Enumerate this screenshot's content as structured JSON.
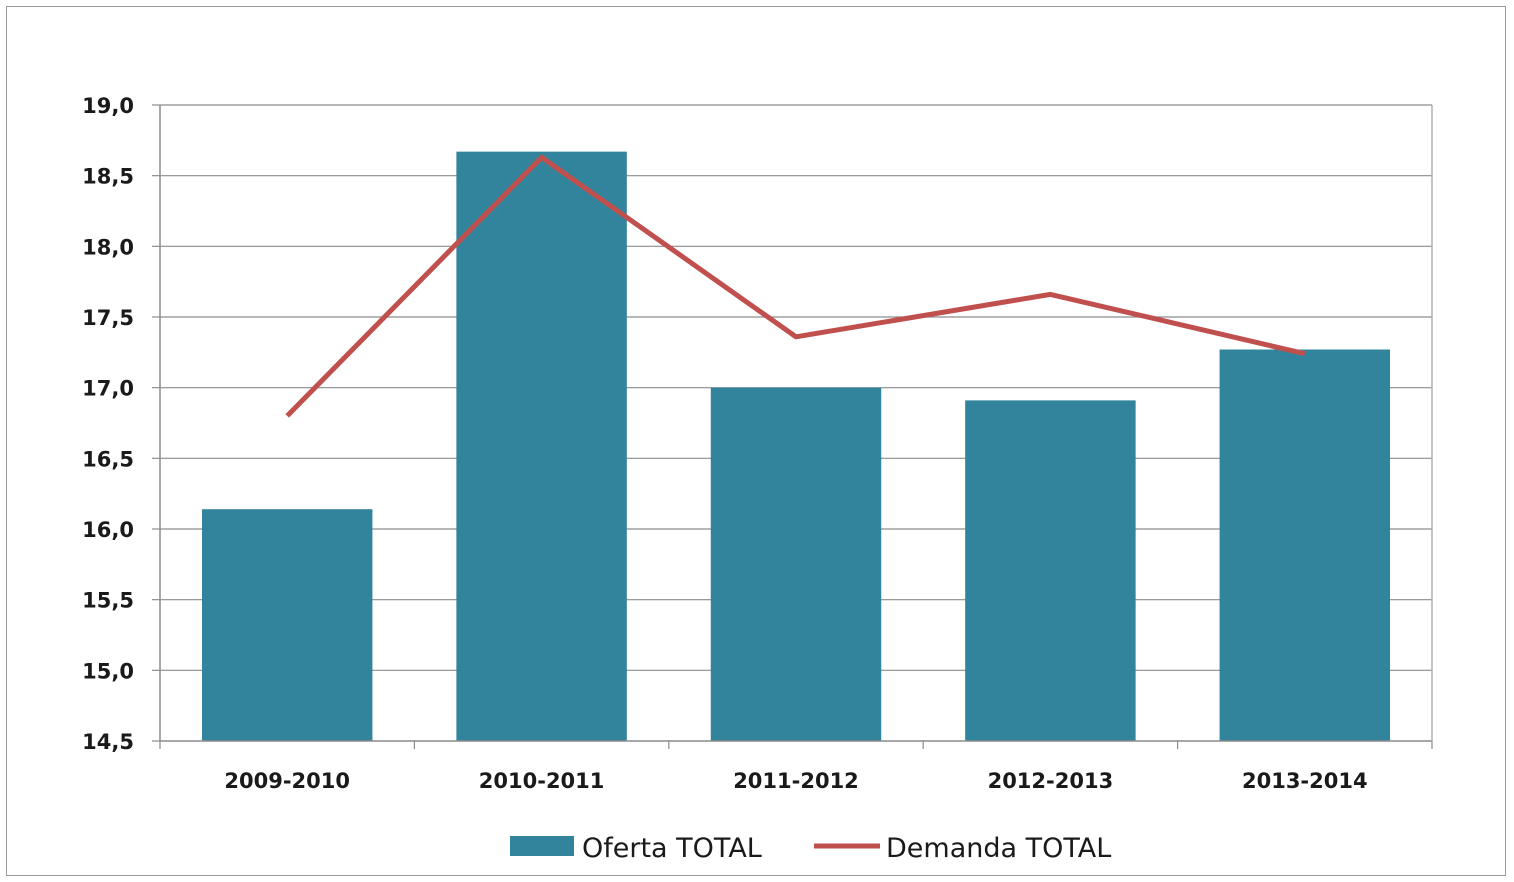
{
  "chart_data": {
    "type": "bar",
    "categories": [
      "2009-2010",
      "2010-2011",
      "2011-2012",
      "2012-2013",
      "2013-2014"
    ],
    "series": [
      {
        "name": "Oferta TOTAL",
        "type": "bar",
        "color": "#31849b",
        "values": [
          16.14,
          18.67,
          17.0,
          16.91,
          17.27
        ]
      },
      {
        "name": "Demanda TOTAL",
        "type": "line",
        "color": "#c0504d",
        "values": [
          16.8,
          18.63,
          17.36,
          17.66,
          17.24
        ]
      }
    ],
    "y_ticks": [
      "14,5",
      "15,0",
      "15,5",
      "16,0",
      "16,5",
      "17,0",
      "17,5",
      "18,0",
      "18,5",
      "19,0"
    ],
    "ylim": [
      14.5,
      19.0
    ],
    "grid": true,
    "legend": "bottom"
  }
}
